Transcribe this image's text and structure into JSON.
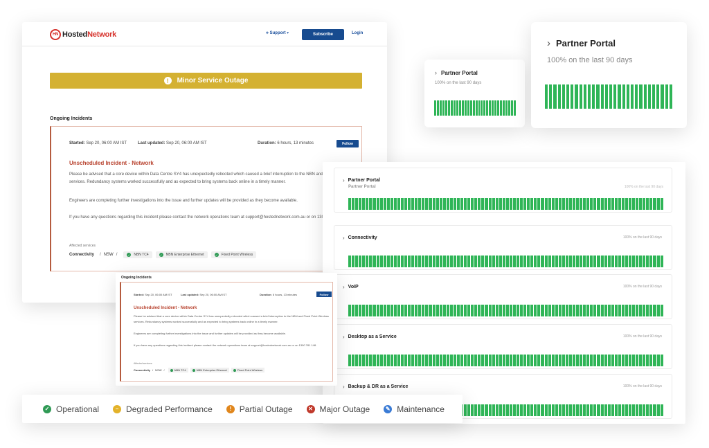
{
  "header": {
    "logo_mark": "HN",
    "logo_text_a": "Hosted",
    "logo_text_b": "Network",
    "support_label": "Support",
    "subscribe_label": "Subscribe",
    "login_label": "Login"
  },
  "banner": {
    "label": "Minor Service Outage"
  },
  "ongoing": {
    "title": "Ongoing Incidents"
  },
  "incident": {
    "started_label": "Started:",
    "started_value": "Sep 20, 06:00 AM IST",
    "updated_label": "Last updated:",
    "updated_value": "Sep 20, 06:00 AM IST",
    "duration_label": "Duration:",
    "duration_value": "6 hours, 13 minutes",
    "follow_label": "Follow",
    "title": "Unscheduled Incident - Network",
    "p1": "Please be advised that a core device within Data Centre SY4 has unexpectedly rebooted which caused a brief interruption to the NBN and Fixed Point Wireless services. Redundancy systems worked successfully and as expected to bring systems back online in a timely manner.",
    "p2": "Engineers are completing further investigations into the issue and further updates will be provided as they become available.",
    "p3": "If you have any questions regarding this incident please contact the network operations team at support@hostednetwork.com.au or on 1300 781 148.",
    "affected_label": "Affected services",
    "affected_group": "Connectivity",
    "affected_region": "NSW",
    "chips": [
      "NBN TC4",
      "NBN Enterprise Ethernet",
      "Fixed Point Wireless"
    ]
  },
  "portal": {
    "title": "Partner Portal",
    "subtitle": "100% on the last 90 days"
  },
  "services": {
    "ghost_title": "Partner Portal",
    "ghost_subtitle": "100% on the last 90 days",
    "items": [
      {
        "name": "Partner Portal",
        "subtitle": ""
      },
      {
        "name": "Connectivity",
        "subtitle": "100% on the last 90 days"
      },
      {
        "name": "VoIP",
        "subtitle": "100% on the last 90 days"
      },
      {
        "name": "Desktop as a Service",
        "subtitle": "100% on the last 90 days"
      },
      {
        "name": "Backup & DR as a Service",
        "subtitle": "100% on the last 90 days"
      }
    ]
  },
  "legend": [
    {
      "label": "Operational",
      "color": "#2f9a55",
      "icon": "check-icon"
    },
    {
      "label": "Degraded Performance",
      "color": "#e3b22a",
      "icon": "minus-icon"
    },
    {
      "label": "Partial Outage",
      "color": "#e0861c",
      "icon": "exclamation-icon"
    },
    {
      "label": "Major Outage",
      "color": "#c0392b",
      "icon": "x-icon"
    },
    {
      "label": "Maintenance",
      "color": "#3a7bd5",
      "icon": "wrench-icon"
    }
  ],
  "colors": {
    "bar": "#2fb557",
    "banner": "#d4b132",
    "primary": "#174b8f"
  }
}
